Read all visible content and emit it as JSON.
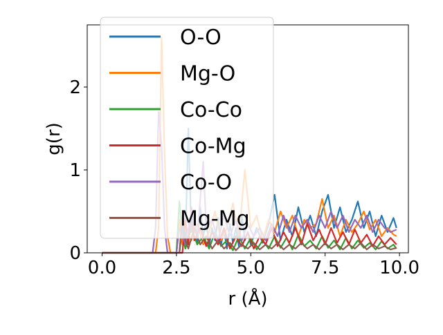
{
  "chart_data": {
    "type": "line",
    "title": "",
    "xlabel": "r (Å)",
    "ylabel": "g(r)",
    "xlim": [
      -0.5,
      10.3
    ],
    "ylim": [
      0,
      2.75
    ],
    "xticks": [
      0.0,
      2.5,
      5.0,
      7.5,
      10.0
    ],
    "xtick_labels": [
      "0.0",
      "2.5",
      "5.0",
      "7.5",
      "10.0"
    ],
    "yticks": [
      0,
      1,
      2
    ],
    "ytick_labels": [
      "0",
      "1",
      "2"
    ],
    "grid": false,
    "legend_position": "top-left",
    "series": [
      {
        "name": "O-O",
        "color": "#1f77b4",
        "points": [
          [
            0,
            0
          ],
          [
            2.6,
            0
          ],
          [
            2.7,
            0.32
          ],
          [
            2.8,
            0.1
          ],
          [
            2.9,
            1.5
          ],
          [
            3.0,
            0.25
          ],
          [
            3.1,
            0.45
          ],
          [
            3.2,
            0.12
          ],
          [
            3.3,
            0.55
          ],
          [
            3.4,
            0.2
          ],
          [
            3.5,
            0.38
          ],
          [
            3.6,
            0.08
          ],
          [
            3.7,
            0.3
          ],
          [
            3.8,
            0.15
          ],
          [
            3.9,
            0.42
          ],
          [
            4.0,
            0.1
          ],
          [
            4.1,
            0.28
          ],
          [
            4.2,
            0.05
          ],
          [
            4.3,
            0.35
          ],
          [
            4.4,
            0.12
          ],
          [
            4.5,
            0.3
          ],
          [
            4.6,
            0.08
          ],
          [
            4.7,
            0.45
          ],
          [
            4.8,
            0.15
          ],
          [
            4.9,
            0.25
          ],
          [
            5.0,
            0.1
          ],
          [
            5.2,
            0.3
          ],
          [
            5.4,
            0.12
          ],
          [
            5.6,
            0.35
          ],
          [
            5.8,
            0.7
          ],
          [
            6.0,
            0.15
          ],
          [
            6.2,
            0.4
          ],
          [
            6.4,
            0.2
          ],
          [
            6.6,
            0.55
          ],
          [
            6.8,
            0.25
          ],
          [
            7.0,
            0.45
          ],
          [
            7.2,
            0.2
          ],
          [
            7.4,
            0.5
          ],
          [
            7.6,
            0.7
          ],
          [
            7.8,
            0.3
          ],
          [
            8.0,
            0.55
          ],
          [
            8.2,
            0.25
          ],
          [
            8.4,
            0.4
          ],
          [
            8.6,
            0.62
          ],
          [
            8.8,
            0.3
          ],
          [
            9.0,
            0.5
          ],
          [
            9.2,
            0.2
          ],
          [
            9.4,
            0.45
          ],
          [
            9.6,
            0.25
          ],
          [
            9.8,
            0.42
          ],
          [
            9.9,
            0.3
          ]
        ]
      },
      {
        "name": "Mg-O",
        "color": "#ff7f0e",
        "points": [
          [
            0,
            0
          ],
          [
            1.8,
            0
          ],
          [
            1.9,
            0.3
          ],
          [
            2.0,
            2.6
          ],
          [
            2.1,
            1.2
          ],
          [
            2.2,
            0.2
          ],
          [
            2.3,
            0
          ],
          [
            2.5,
            0
          ],
          [
            2.6,
            0.4
          ],
          [
            2.7,
            0.1
          ],
          [
            2.8,
            0.3
          ],
          [
            3.0,
            0.15
          ],
          [
            3.2,
            0.35
          ],
          [
            3.4,
            0.1
          ],
          [
            3.6,
            0.25
          ],
          [
            3.8,
            0.5
          ],
          [
            4.0,
            0.15
          ],
          [
            4.2,
            0.3
          ],
          [
            4.4,
            0.6
          ],
          [
            4.6,
            0.2
          ],
          [
            4.8,
            1.0
          ],
          [
            5.0,
            0.3
          ],
          [
            5.2,
            0.45
          ],
          [
            5.4,
            0.15
          ],
          [
            5.6,
            0.4
          ],
          [
            5.8,
            0.25
          ],
          [
            6.0,
            0.5
          ],
          [
            6.2,
            0.3
          ],
          [
            6.4,
            0.45
          ],
          [
            6.6,
            0.2
          ],
          [
            6.8,
            0.4
          ],
          [
            7.0,
            0.3
          ],
          [
            7.2,
            0.35
          ],
          [
            7.4,
            0.65
          ],
          [
            7.6,
            0.3
          ],
          [
            7.8,
            0.45
          ],
          [
            8.0,
            0.2
          ],
          [
            8.2,
            0.4
          ],
          [
            8.4,
            0.25
          ],
          [
            8.6,
            0.35
          ],
          [
            8.8,
            0.5
          ],
          [
            9.0,
            0.28
          ],
          [
            9.2,
            0.4
          ],
          [
            9.4,
            0.2
          ],
          [
            9.6,
            0.3
          ],
          [
            9.8,
            0.22
          ],
          [
            9.9,
            0.2
          ]
        ]
      },
      {
        "name": "Co-Co",
        "color": "#2ca02c",
        "points": [
          [
            0,
            0
          ],
          [
            2.5,
            0
          ],
          [
            2.6,
            0.62
          ],
          [
            2.7,
            0.2
          ],
          [
            2.8,
            0.05
          ],
          [
            3.0,
            0.3
          ],
          [
            3.2,
            0.1
          ],
          [
            3.4,
            0.2
          ],
          [
            3.6,
            0.05
          ],
          [
            3.8,
            0.25
          ],
          [
            4.0,
            0.08
          ],
          [
            4.2,
            0.15
          ],
          [
            4.4,
            0.03
          ],
          [
            4.6,
            0.2
          ],
          [
            4.8,
            0.05
          ],
          [
            5.0,
            0.18
          ],
          [
            5.2,
            0.04
          ],
          [
            5.4,
            0.15
          ],
          [
            5.6,
            0.05
          ],
          [
            5.8,
            0.2
          ],
          [
            6.0,
            0.06
          ],
          [
            6.2,
            0.18
          ],
          [
            6.4,
            0.04
          ],
          [
            6.6,
            0.22
          ],
          [
            6.8,
            0.08
          ],
          [
            7.0,
            0.15
          ],
          [
            7.2,
            0.05
          ],
          [
            7.4,
            0.2
          ],
          [
            7.6,
            0.06
          ],
          [
            7.8,
            0.15
          ],
          [
            8.0,
            0.04
          ],
          [
            8.2,
            0.18
          ],
          [
            8.4,
            0.05
          ],
          [
            8.6,
            0.15
          ],
          [
            8.8,
            0.06
          ],
          [
            9.0,
            0.12
          ],
          [
            9.2,
            0.04
          ],
          [
            9.4,
            0.14
          ],
          [
            9.6,
            0.05
          ],
          [
            9.8,
            0.1
          ],
          [
            9.9,
            0.05
          ]
        ]
      },
      {
        "name": "Co-Mg",
        "color": "#d62728",
        "points": [
          [
            0,
            0
          ],
          [
            2.7,
            0
          ],
          [
            2.8,
            0.4
          ],
          [
            2.9,
            0.1
          ],
          [
            3.0,
            0.55
          ],
          [
            3.1,
            0.15
          ],
          [
            3.3,
            0.3
          ],
          [
            3.5,
            0.08
          ],
          [
            3.7,
            0.25
          ],
          [
            3.9,
            0.1
          ],
          [
            4.1,
            0.3
          ],
          [
            4.3,
            0.05
          ],
          [
            4.5,
            0.2
          ],
          [
            4.7,
            0.08
          ],
          [
            4.9,
            0.25
          ],
          [
            5.1,
            0.05
          ],
          [
            5.3,
            0.2
          ],
          [
            5.5,
            0.1
          ],
          [
            5.7,
            0.3
          ],
          [
            5.9,
            0.08
          ],
          [
            6.1,
            0.25
          ],
          [
            6.3,
            0.12
          ],
          [
            6.5,
            0.3
          ],
          [
            6.7,
            0.1
          ],
          [
            6.9,
            0.35
          ],
          [
            7.1,
            0.15
          ],
          [
            7.3,
            0.28
          ],
          [
            7.5,
            0.1
          ],
          [
            7.7,
            0.3
          ],
          [
            7.9,
            0.12
          ],
          [
            8.1,
            0.25
          ],
          [
            8.3,
            0.1
          ],
          [
            8.5,
            0.28
          ],
          [
            8.7,
            0.12
          ],
          [
            8.9,
            0.22
          ],
          [
            9.1,
            0.08
          ],
          [
            9.3,
            0.2
          ],
          [
            9.5,
            0.1
          ],
          [
            9.7,
            0.18
          ],
          [
            9.9,
            0.1
          ]
        ]
      },
      {
        "name": "Co-O",
        "color": "#9467bd",
        "points": [
          [
            0,
            0
          ],
          [
            1.7,
            0
          ],
          [
            1.8,
            0.3
          ],
          [
            1.9,
            1.7
          ],
          [
            2.0,
            1.3
          ],
          [
            2.1,
            0.3
          ],
          [
            2.2,
            0
          ],
          [
            2.5,
            0
          ],
          [
            2.6,
            0.3
          ],
          [
            2.8,
            0.1
          ],
          [
            3.0,
            0.5
          ],
          [
            3.2,
            0.2
          ],
          [
            3.4,
            1.1
          ],
          [
            3.5,
            0.3
          ],
          [
            3.7,
            0.4
          ],
          [
            3.9,
            0.15
          ],
          [
            4.1,
            0.45
          ],
          [
            4.3,
            0.2
          ],
          [
            4.5,
            0.4
          ],
          [
            4.7,
            0.15
          ],
          [
            4.9,
            0.35
          ],
          [
            5.1,
            0.2
          ],
          [
            5.3,
            0.3
          ],
          [
            5.5,
            0.15
          ],
          [
            5.7,
            0.35
          ],
          [
            5.9,
            0.2
          ],
          [
            6.1,
            0.45
          ],
          [
            6.3,
            0.25
          ],
          [
            6.5,
            0.45
          ],
          [
            6.7,
            0.3
          ],
          [
            6.9,
            0.4
          ],
          [
            7.1,
            0.25
          ],
          [
            7.3,
            0.45
          ],
          [
            7.5,
            0.3
          ],
          [
            7.7,
            0.5
          ],
          [
            7.9,
            0.3
          ],
          [
            8.1,
            0.45
          ],
          [
            8.3,
            0.25
          ],
          [
            8.5,
            0.4
          ],
          [
            8.7,
            0.3
          ],
          [
            8.9,
            0.45
          ],
          [
            9.1,
            0.25
          ],
          [
            9.3,
            0.4
          ],
          [
            9.5,
            0.3
          ],
          [
            9.7,
            0.25
          ],
          [
            9.9,
            0.28
          ]
        ]
      },
      {
        "name": "Mg-Mg",
        "color": "#8c564b",
        "points": [
          [
            0,
            0
          ],
          [
            2.6,
            0
          ],
          [
            2.7,
            0.45
          ],
          [
            2.8,
            0.15
          ],
          [
            2.9,
            0.05
          ],
          [
            3.1,
            0.3
          ],
          [
            3.3,
            0.1
          ],
          [
            3.5,
            0.2
          ],
          [
            3.7,
            0.05
          ],
          [
            3.9,
            0.15
          ],
          [
            4.1,
            0.05
          ],
          [
            4.3,
            0.12
          ],
          [
            4.5,
            0.03
          ],
          [
            4.7,
            0.1
          ],
          [
            4.9,
            0.05
          ],
          [
            5.1,
            0.12
          ],
          [
            5.3,
            0.04
          ],
          [
            5.5,
            0.1
          ],
          [
            5.7,
            0.05
          ],
          [
            5.9,
            0.12
          ],
          [
            6.1,
            0.04
          ],
          [
            6.3,
            0.1
          ],
          [
            6.5,
            0.05
          ],
          [
            6.7,
            0.12
          ],
          [
            6.9,
            0.05
          ],
          [
            7.1,
            0.1
          ],
          [
            7.3,
            0.04
          ],
          [
            7.5,
            0.12
          ],
          [
            7.7,
            0.05
          ],
          [
            7.9,
            0.1
          ],
          [
            8.1,
            0.04
          ],
          [
            8.3,
            0.1
          ],
          [
            8.5,
            0.05
          ],
          [
            8.7,
            0.12
          ],
          [
            8.9,
            0.04
          ],
          [
            9.1,
            0.1
          ],
          [
            9.3,
            0.05
          ],
          [
            9.5,
            0.08
          ],
          [
            9.7,
            0.04
          ],
          [
            9.9,
            0.06
          ]
        ]
      }
    ]
  }
}
